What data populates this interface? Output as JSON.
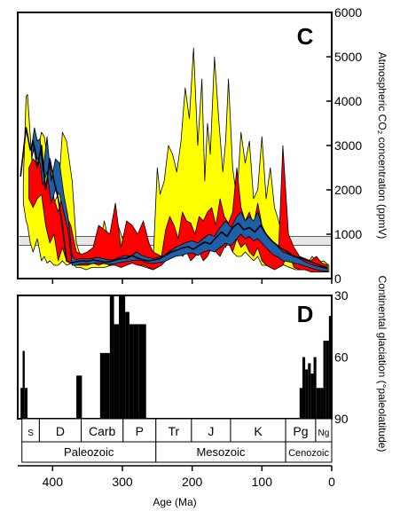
{
  "chart_data": [
    {
      "type": "area",
      "panel_label": "C",
      "ylabel": "Atmospheric CO₂ concentration (ppmV)",
      "ylim": [
        0,
        6000
      ],
      "yticks": [
        "0",
        "1000",
        "2000",
        "3000",
        "4000",
        "5000",
        "6000"
      ],
      "x_direction": "reversed",
      "xlim": [
        450,
        0
      ],
      "reference_band": {
        "y_min": 750,
        "y_max": 950,
        "color": "#e6e6e6"
      },
      "series": [
        {
          "color": "#ffff00",
          "style": "band",
          "x": [
            442,
            438,
            436,
            432,
            428,
            422,
            416,
            412,
            408,
            404,
            398,
            392,
            386,
            380,
            372,
            366,
            360,
            352,
            344,
            336,
            326,
            316,
            306,
            296,
            286,
            276,
            266,
            256,
            250,
            246,
            240,
            234,
            228,
            222,
            216,
            210,
            204,
            198,
            192,
            186,
            182,
            178,
            174,
            168,
            162,
            156,
            152,
            148,
            142,
            136,
            130,
            124,
            118,
            112,
            106,
            100,
            94,
            88,
            82,
            76,
            68,
            60,
            52,
            44,
            36,
            28,
            20,
            12,
            4
          ],
          "upper": [
            2200,
            4100,
            4150,
            3200,
            2300,
            2800,
            3300,
            3200,
            2800,
            2500,
            1700,
            1900,
            3300,
            3100,
            2200,
            800,
            500,
            400,
            500,
            450,
            1300,
            600,
            1200,
            700,
            1000,
            600,
            400,
            350,
            2500,
            1900,
            2200,
            3000,
            2800,
            2400,
            3100,
            4300,
            3600,
            5200,
            3000,
            4500,
            2200,
            3500,
            2800,
            5000,
            3600,
            2400,
            3100,
            4500,
            2500,
            1800,
            3300,
            2600,
            3100,
            1800,
            2000,
            3200,
            1800,
            2500,
            1600,
            1300,
            700,
            600,
            400,
            350,
            300,
            500,
            350,
            400,
            300
          ],
          "lower": [
            1700,
            1300,
            1200,
            800,
            600,
            900,
            400,
            500,
            350,
            400,
            300,
            300,
            400,
            300,
            350,
            250,
            250,
            200,
            250,
            250,
            250,
            300,
            400,
            350,
            450,
            300,
            250,
            200,
            250,
            300,
            500,
            450,
            700,
            900,
            800,
            1000,
            600,
            900,
            700,
            600,
            500,
            700,
            800,
            600,
            1000,
            800,
            700,
            900,
            600,
            500,
            500,
            600,
            500,
            400,
            500,
            300,
            300,
            300,
            250,
            400,
            300,
            250,
            200,
            200,
            200,
            200,
            150,
            150,
            150
          ]
        },
        {
          "color": "#ff0000",
          "style": "band",
          "x": [
            434,
            428,
            422,
            416,
            410,
            404,
            398,
            392,
            386,
            380,
            374,
            366,
            358,
            350,
            342,
            334,
            326,
            318,
            310,
            302,
            294,
            286,
            278,
            270,
            262,
            256,
            250,
            244,
            238,
            232,
            226,
            220,
            214,
            208,
            202,
            196,
            190,
            184,
            178,
            172,
            166,
            160,
            154,
            148,
            142,
            136,
            130,
            124,
            118,
            112,
            106,
            100,
            94,
            88,
            82,
            76,
            70,
            62,
            54,
            46,
            38,
            30,
            22,
            14,
            6
          ],
          "upper": [
            2500,
            2700,
            2600,
            2800,
            2000,
            2600,
            1800,
            1500,
            1900,
            1400,
            1200,
            600,
            550,
            600,
            700,
            1200,
            1100,
            1000,
            1700,
            700,
            1300,
            1200,
            1000,
            1300,
            800,
            600,
            550,
            500,
            1100,
            1400,
            1200,
            900,
            1500,
            1300,
            1250,
            1000,
            1400,
            1300,
            1500,
            1600,
            1200,
            1800,
            1400,
            1250,
            1500,
            2500,
            1600,
            1300,
            1500,
            1200,
            1700,
            1200,
            800,
            700,
            600,
            700,
            3000,
            1000,
            700,
            500,
            450,
            400,
            500,
            350,
            300
          ],
          "lower": [
            1800,
            1600,
            1800,
            1900,
            1200,
            800,
            1000,
            400,
            700,
            400,
            350,
            300,
            300,
            300,
            350,
            300,
            350,
            300,
            300,
            250,
            300,
            350,
            300,
            300,
            250,
            200,
            250,
            300,
            400,
            450,
            500,
            700,
            500,
            600,
            400,
            500,
            600,
            400,
            500,
            700,
            600,
            500,
            700,
            800,
            600,
            900,
            700,
            800,
            600,
            500,
            700,
            400,
            300,
            250,
            200,
            250,
            300,
            600,
            250,
            200,
            200,
            150,
            150,
            150,
            150
          ]
        },
        {
          "color": "#1f5fa8",
          "style": "band",
          "x": [
            430,
            426,
            422,
            418,
            414,
            408,
            402,
            396,
            390,
            384,
            378,
            372,
            366,
            360,
            352,
            344,
            336,
            328,
            320,
            312,
            304,
            296,
            288,
            280,
            272,
            264,
            256,
            248,
            240,
            232,
            224,
            216,
            208,
            200,
            192,
            184,
            176,
            168,
            160,
            152,
            144,
            136,
            130,
            124,
            118,
            112,
            106,
            100,
            94,
            88,
            82,
            76,
            70,
            62,
            54,
            46,
            38,
            30,
            22,
            14,
            6
          ],
          "upper": [
            3000,
            3400,
            3100,
            3150,
            2400,
            3200,
            2200,
            2700,
            2600,
            1900,
            1400,
            500,
            420,
            450,
            440,
            450,
            480,
            450,
            420,
            430,
            480,
            520,
            500,
            600,
            520,
            480,
            450,
            480,
            520,
            620,
            700,
            760,
            820,
            850,
            800,
            900,
            1000,
            950,
            1150,
            1300,
            1150,
            1400,
            1500,
            1300,
            1400,
            1300,
            1500,
            1200,
            1000,
            900,
            800,
            700,
            600,
            550,
            500,
            450,
            380,
            320,
            280,
            250,
            220
          ],
          "lower": [
            2700,
            3000,
            2700,
            2600,
            2100,
            2400,
            1700,
            2000,
            1900,
            1500,
            1100,
            300,
            300,
            330,
            340,
            330,
            360,
            340,
            320,
            330,
            360,
            380,
            400,
            420,
            400,
            360,
            340,
            360,
            380,
            440,
            500,
            520,
            560,
            580,
            520,
            600,
            640,
            600,
            700,
            800,
            750,
            900,
            1000,
            900,
            950,
            850,
            900,
            800,
            700,
            600,
            520,
            480,
            400,
            380,
            350,
            320,
            280,
            240,
            200,
            180,
            160
          ]
        },
        {
          "color": "#000000",
          "style": "line",
          "x": [
            446,
            438,
            432,
            428,
            422,
            416,
            410,
            404,
            398,
            392,
            386,
            380,
            374,
            366,
            358,
            350,
            342,
            334,
            326,
            318,
            310,
            302,
            294,
            286,
            278,
            270,
            262,
            254,
            246,
            238,
            230,
            222,
            214,
            206,
            198,
            190,
            182,
            174,
            166,
            158,
            150,
            142,
            134,
            126,
            118,
            110,
            102,
            94,
            86,
            78,
            70,
            62,
            54,
            46,
            38,
            30,
            22,
            14,
            6
          ],
          "y": [
            2300,
            3400,
            2900,
            3100,
            2500,
            3000,
            2000,
            2700,
            2200,
            1800,
            1200,
            400,
            350,
            380,
            400,
            390,
            420,
            400,
            370,
            380,
            420,
            450,
            460,
            520,
            460,
            420,
            400,
            420,
            450,
            530,
            600,
            640,
            690,
            720,
            660,
            750,
            820,
            780,
            920,
            1050,
            950,
            1150,
            1250,
            1100,
            1150,
            1050,
            1200,
            1000,
            850,
            750,
            660,
            590,
            500,
            470,
            430,
            380,
            330,
            280,
            240
          ]
        }
      ]
    },
    {
      "type": "bar",
      "panel_label": "D",
      "ylabel": "Continental glaciation (°paleolatitude)",
      "ylim": [
        90,
        30
      ],
      "yticks": [
        "30",
        "60",
        "90"
      ],
      "x_direction": "reversed",
      "xlim": [
        450,
        0
      ],
      "xlabel": "Age (Ma)",
      "xticks": [
        "400",
        "300",
        "200",
        "100",
        "0"
      ],
      "bars": [
        {
          "x_start": 446,
          "x_end": 443,
          "top": 75
        },
        {
          "x_start": 443,
          "x_end": 440,
          "top": 57
        },
        {
          "x_start": 440,
          "x_end": 436,
          "top": 75
        },
        {
          "x_start": 366,
          "x_end": 361,
          "top": 69
        },
        {
          "x_start": 361,
          "x_end": 358,
          "top": 69
        },
        {
          "x_start": 332,
          "x_end": 326,
          "top": 58
        },
        {
          "x_start": 326,
          "x_end": 318,
          "top": 58
        },
        {
          "x_start": 318,
          "x_end": 312,
          "top": 30
        },
        {
          "x_start": 312,
          "x_end": 305,
          "top": 44
        },
        {
          "x_start": 305,
          "x_end": 296,
          "top": 30
        },
        {
          "x_start": 296,
          "x_end": 290,
          "top": 38
        },
        {
          "x_start": 290,
          "x_end": 284,
          "top": 44
        },
        {
          "x_start": 284,
          "x_end": 276,
          "top": 44
        },
        {
          "x_start": 276,
          "x_end": 266,
          "top": 44
        },
        {
          "x_start": 46,
          "x_end": 42,
          "top": 75
        },
        {
          "x_start": 42,
          "x_end": 38,
          "top": 60
        },
        {
          "x_start": 38,
          "x_end": 34,
          "top": 66
        },
        {
          "x_start": 34,
          "x_end": 30,
          "top": 63
        },
        {
          "x_start": 30,
          "x_end": 26,
          "top": 68
        },
        {
          "x_start": 26,
          "x_end": 22,
          "top": 60
        },
        {
          "x_start": 22,
          "x_end": 16,
          "top": 75
        },
        {
          "x_start": 16,
          "x_end": 12,
          "top": 75
        },
        {
          "x_start": 12,
          "x_end": 8,
          "top": 52
        },
        {
          "x_start": 8,
          "x_end": 4,
          "top": 52
        },
        {
          "x_start": 4,
          "x_end": 0,
          "top": 40
        }
      ]
    }
  ],
  "periods": [
    {
      "label": "S",
      "start": 444,
      "end": 419
    },
    {
      "label": "D",
      "start": 419,
      "end": 359
    },
    {
      "label": "Carb",
      "start": 359,
      "end": 299
    },
    {
      "label": "P",
      "start": 299,
      "end": 252
    },
    {
      "label": "Tr",
      "start": 252,
      "end": 201
    },
    {
      "label": "J",
      "start": 201,
      "end": 145
    },
    {
      "label": "K",
      "start": 145,
      "end": 66
    },
    {
      "label": "Pg",
      "start": 66,
      "end": 23
    },
    {
      "label": "Ng",
      "start": 23,
      "end": 0
    }
  ],
  "eras": [
    {
      "label": "Paleozoic",
      "start": 444,
      "end": 252
    },
    {
      "label": "Mesozoic",
      "start": 252,
      "end": 66
    },
    {
      "label": "Cenozoic",
      "start": 66,
      "end": 0
    }
  ]
}
